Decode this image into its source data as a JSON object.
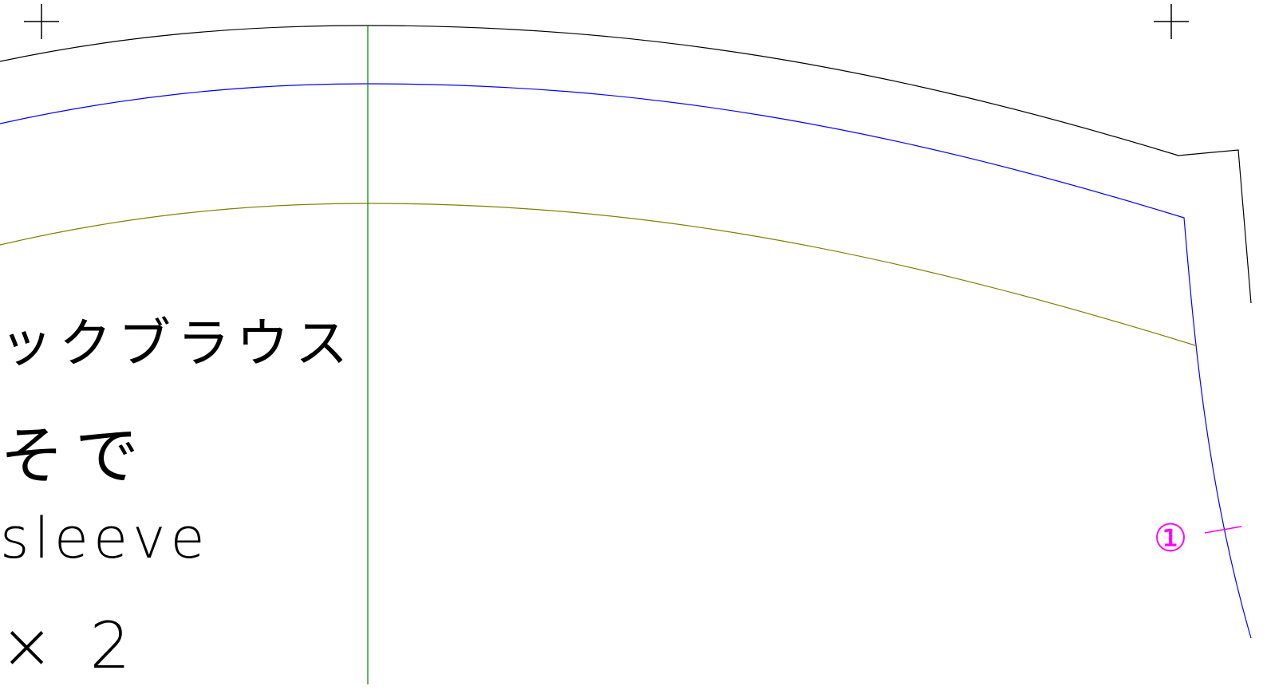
{
  "labels": {
    "title": "ックブラウス",
    "part": "そで",
    "part_en": "sleeve",
    "count": "× 2",
    "mark": "①"
  }
}
